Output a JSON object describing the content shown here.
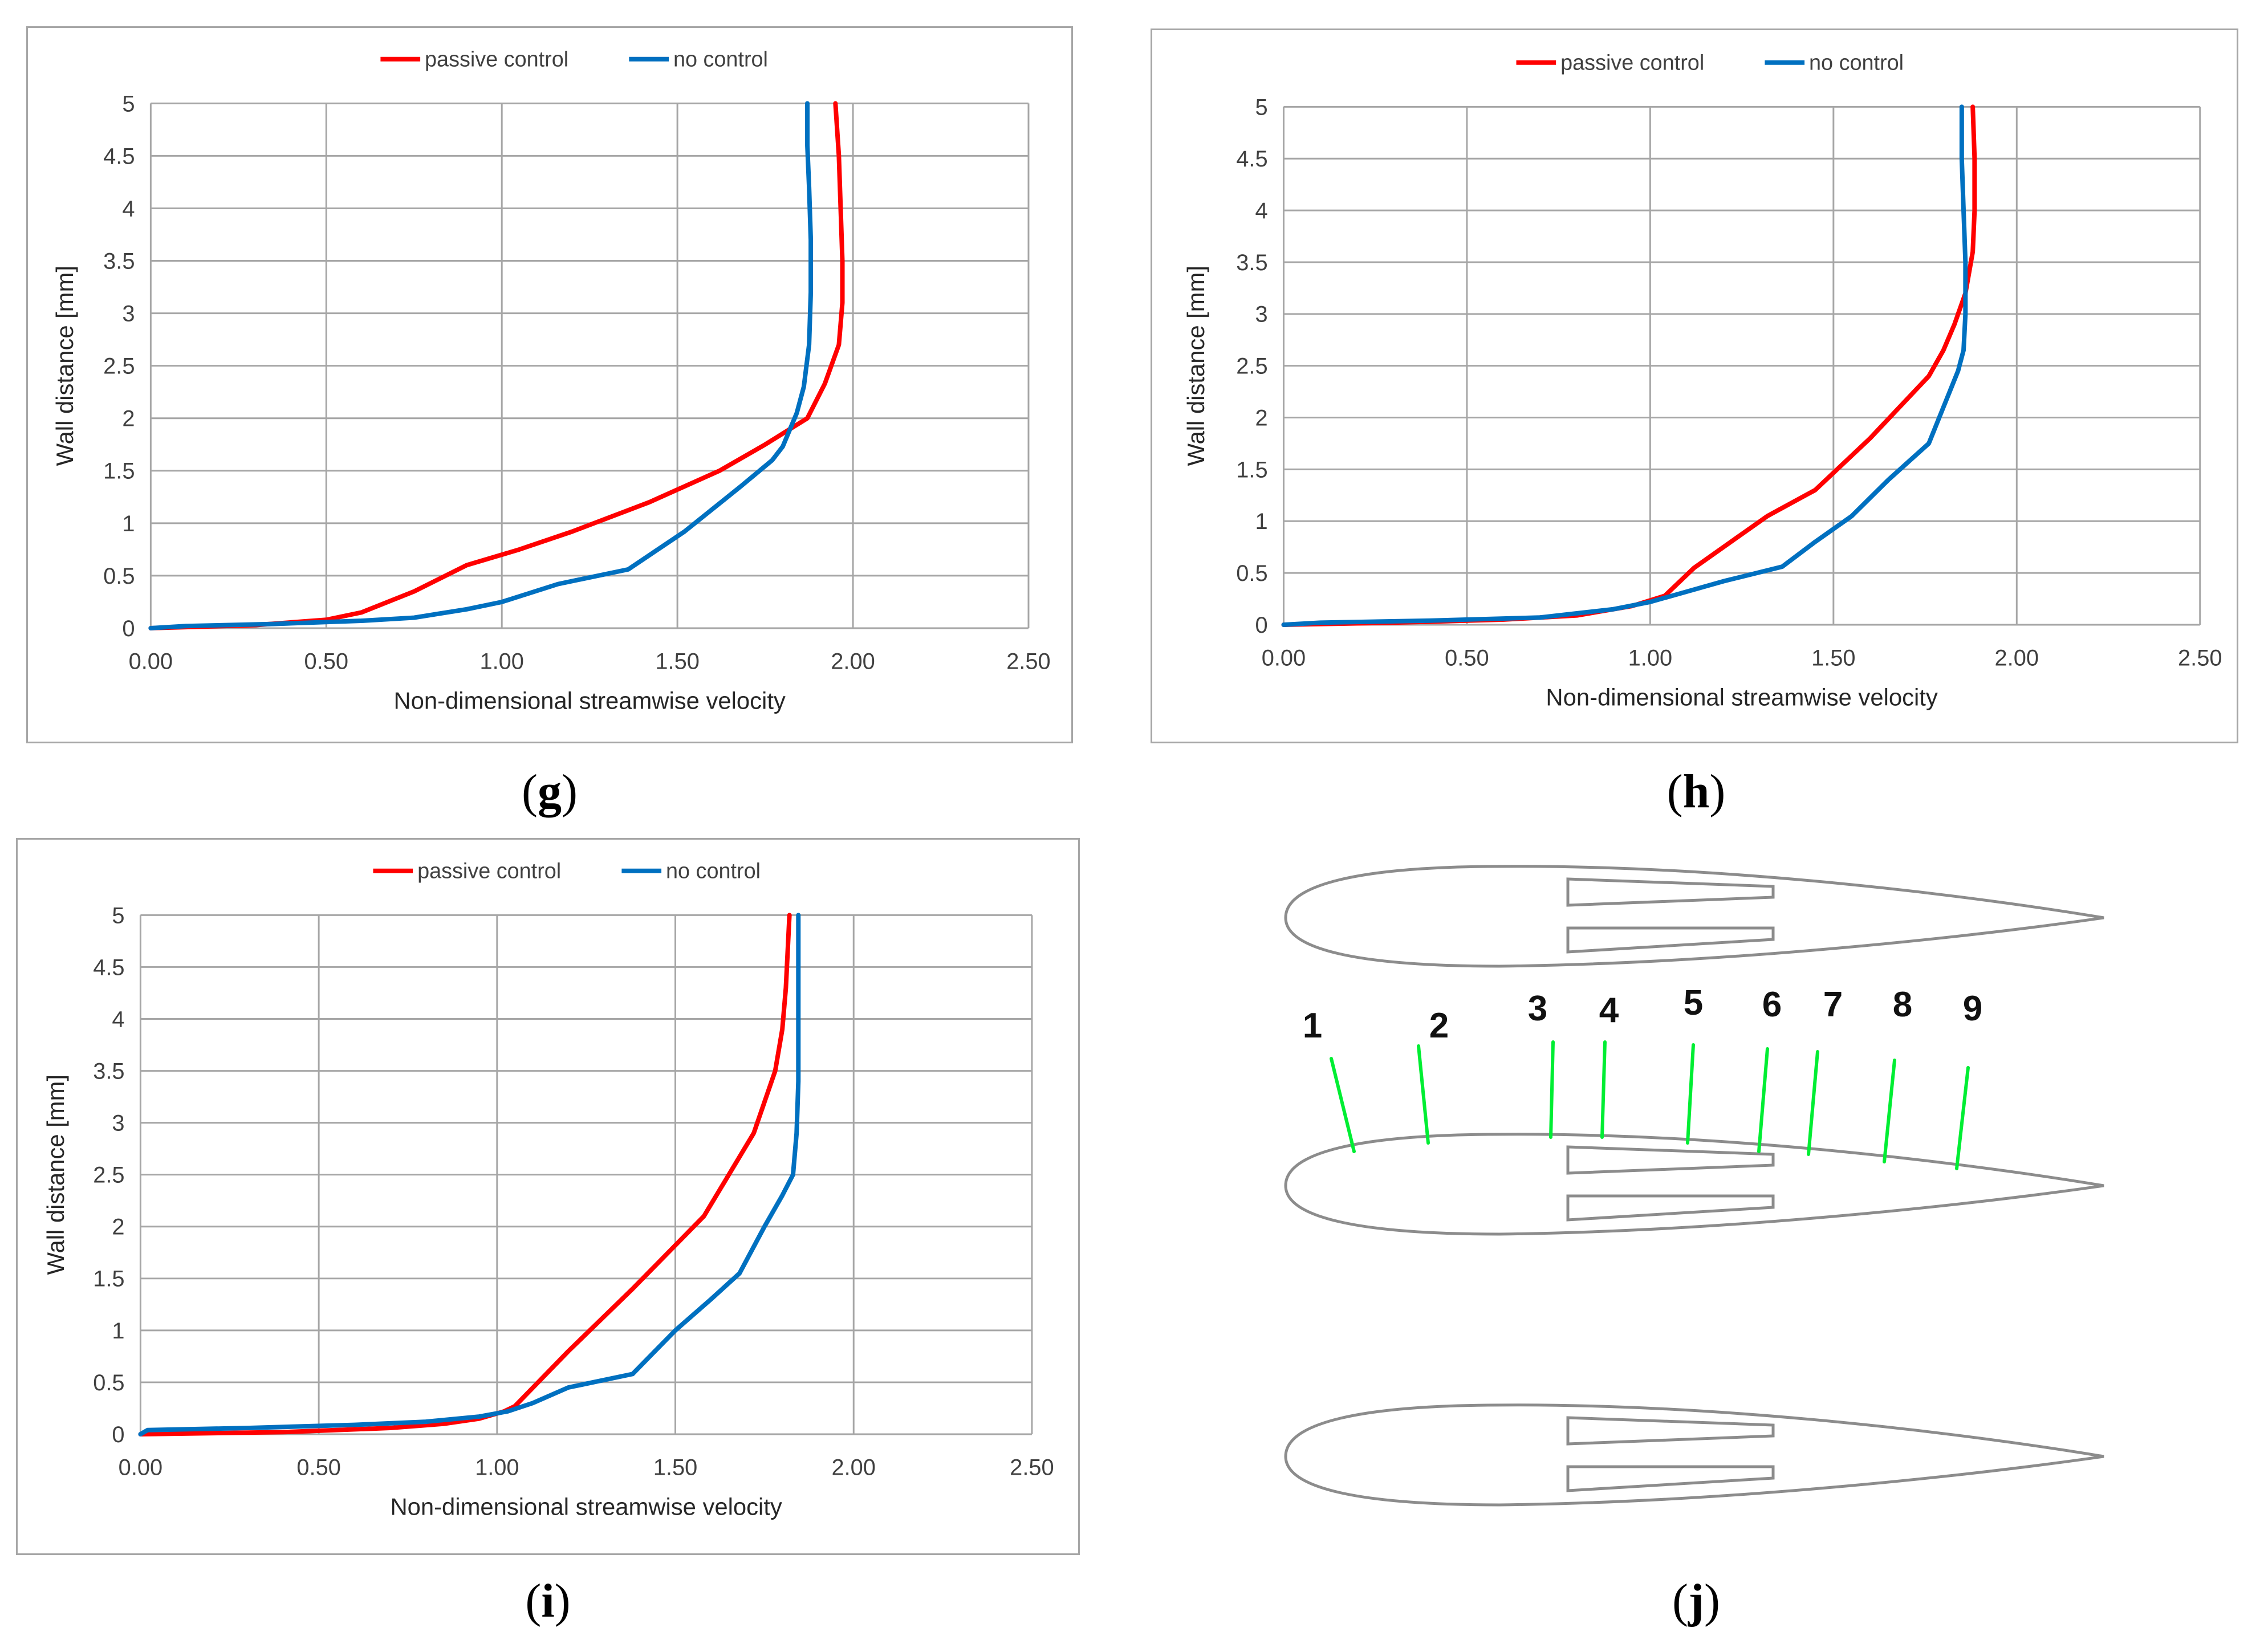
{
  "chart_data": [
    {
      "id": "g",
      "type": "line",
      "caption_letter": "g",
      "xlabel": "Non-dimensional  streamwise velocity",
      "ylabel": "Wall distance [mm]",
      "xlim": [
        0,
        2.5
      ],
      "ylim": [
        0,
        5
      ],
      "x_ticks": [
        "0.00",
        "0.50",
        "1.00",
        "1.50",
        "2.00",
        "2.50"
      ],
      "y_ticks": [
        "0",
        "0.5",
        "1",
        "1.5",
        "2",
        "2.5",
        "3",
        "3.5",
        "4",
        "4.5",
        "5"
      ],
      "grid": true,
      "legend_position": "top-center",
      "series": [
        {
          "name": "passive control",
          "color": "#ff0000",
          "points": [
            [
              0,
              0
            ],
            [
              0.3,
              0.03
            ],
            [
              0.5,
              0.08
            ],
            [
              0.6,
              0.15
            ],
            [
              0.75,
              0.35
            ],
            [
              0.9,
              0.6
            ],
            [
              1.05,
              0.75
            ],
            [
              1.2,
              0.92
            ],
            [
              1.42,
              1.2
            ],
            [
              1.62,
              1.5
            ],
            [
              1.75,
              1.75
            ],
            [
              1.87,
              2.0
            ],
            [
              1.92,
              2.33
            ],
            [
              1.96,
              2.7
            ],
            [
              1.97,
              3.1
            ],
            [
              1.97,
              3.5
            ],
            [
              1.965,
              4.0
            ],
            [
              1.96,
              4.5
            ],
            [
              1.95,
              5.0
            ]
          ]
        },
        {
          "name": "no control",
          "color": "#0070c0",
          "points": [
            [
              0,
              0
            ],
            [
              0.1,
              0.02
            ],
            [
              0.35,
              0.04
            ],
            [
              0.6,
              0.07
            ],
            [
              0.75,
              0.1
            ],
            [
              0.9,
              0.18
            ],
            [
              1.0,
              0.25
            ],
            [
              1.16,
              0.42
            ],
            [
              1.36,
              0.56
            ],
            [
              1.52,
              0.92
            ],
            [
              1.68,
              1.35
            ],
            [
              1.77,
              1.6
            ],
            [
              1.8,
              1.73
            ],
            [
              1.84,
              2.05
            ],
            [
              1.86,
              2.3
            ],
            [
              1.875,
              2.7
            ],
            [
              1.88,
              3.2
            ],
            [
              1.88,
              3.7
            ],
            [
              1.875,
              4.2
            ],
            [
              1.87,
              4.6
            ],
            [
              1.87,
              5.0
            ]
          ]
        }
      ]
    },
    {
      "id": "h",
      "type": "line",
      "caption_letter": "h",
      "xlabel": "Non-dimensional  streamwise velocity",
      "ylabel": "Wall distance [mm]",
      "xlim": [
        0,
        2.5
      ],
      "ylim": [
        0,
        5
      ],
      "x_ticks": [
        "0.00",
        "0.50",
        "1.00",
        "1.50",
        "2.00",
        "2.50"
      ],
      "y_ticks": [
        "0",
        "0.5",
        "1",
        "1.5",
        "2",
        "2.5",
        "3",
        "3.5",
        "4",
        "4.5",
        "5"
      ],
      "grid": true,
      "legend_position": "top-center",
      "series": [
        {
          "name": "passive control",
          "color": "#ff0000",
          "points": [
            [
              0,
              0
            ],
            [
              0.3,
              0.02
            ],
            [
              0.6,
              0.05
            ],
            [
              0.8,
              0.09
            ],
            [
              0.95,
              0.18
            ],
            [
              1.04,
              0.28
            ],
            [
              1.12,
              0.55
            ],
            [
              1.22,
              0.8
            ],
            [
              1.32,
              1.05
            ],
            [
              1.45,
              1.3
            ],
            [
              1.6,
              1.8
            ],
            [
              1.68,
              2.1
            ],
            [
              1.76,
              2.4
            ],
            [
              1.8,
              2.65
            ],
            [
              1.83,
              2.9
            ],
            [
              1.86,
              3.2
            ],
            [
              1.88,
              3.6
            ],
            [
              1.885,
              4.0
            ],
            [
              1.885,
              4.5
            ],
            [
              1.88,
              5.0
            ]
          ]
        },
        {
          "name": "no control",
          "color": "#0070c0",
          "points": [
            [
              0,
              0
            ],
            [
              0.1,
              0.02
            ],
            [
              0.4,
              0.04
            ],
            [
              0.7,
              0.07
            ],
            [
              0.9,
              0.15
            ],
            [
              1.0,
              0.22
            ],
            [
              1.2,
              0.42
            ],
            [
              1.36,
              0.56
            ],
            [
              1.45,
              0.8
            ],
            [
              1.55,
              1.05
            ],
            [
              1.65,
              1.4
            ],
            [
              1.76,
              1.75
            ],
            [
              1.8,
              2.1
            ],
            [
              1.84,
              2.45
            ],
            [
              1.855,
              2.65
            ],
            [
              1.86,
              3.0
            ],
            [
              1.86,
              3.5
            ],
            [
              1.855,
              4.0
            ],
            [
              1.85,
              4.5
            ],
            [
              1.85,
              5.0
            ]
          ]
        }
      ]
    },
    {
      "id": "i",
      "type": "line",
      "caption_letter": "i",
      "xlabel": "Non-dimensional  streamwise velocity",
      "ylabel": "Wall distance [mm]",
      "xlim": [
        0,
        2.5
      ],
      "ylim": [
        0,
        5
      ],
      "x_ticks": [
        "0.00",
        "0.50",
        "1.00",
        "1.50",
        "2.00",
        "2.50"
      ],
      "y_ticks": [
        "0",
        "0.5",
        "1",
        "1.5",
        "2",
        "2.5",
        "3",
        "3.5",
        "4",
        "4.5",
        "5"
      ],
      "grid": true,
      "legend_position": "top-center",
      "series": [
        {
          "name": "passive control",
          "color": "#ff0000",
          "points": [
            [
              0,
              0
            ],
            [
              0.4,
              0.02
            ],
            [
              0.7,
              0.06
            ],
            [
              0.85,
              0.1
            ],
            [
              0.95,
              0.15
            ],
            [
              1.02,
              0.22
            ],
            [
              1.05,
              0.27
            ],
            [
              1.2,
              0.8
            ],
            [
              1.38,
              1.4
            ],
            [
              1.58,
              2.1
            ],
            [
              1.65,
              2.5
            ],
            [
              1.72,
              2.9
            ],
            [
              1.78,
              3.5
            ],
            [
              1.8,
              3.9
            ],
            [
              1.81,
              4.3
            ],
            [
              1.82,
              5.0
            ]
          ]
        },
        {
          "name": "no control",
          "color": "#0070c0",
          "points": [
            [
              0,
              0
            ],
            [
              0.02,
              0.04
            ],
            [
              0.3,
              0.06
            ],
            [
              0.6,
              0.09
            ],
            [
              0.8,
              0.12
            ],
            [
              0.95,
              0.17
            ],
            [
              1.03,
              0.22
            ],
            [
              1.1,
              0.3
            ],
            [
              1.2,
              0.45
            ],
            [
              1.38,
              0.58
            ],
            [
              1.5,
              1.0
            ],
            [
              1.6,
              1.3
            ],
            [
              1.68,
              1.55
            ],
            [
              1.75,
              2.0
            ],
            [
              1.8,
              2.3
            ],
            [
              1.83,
              2.5
            ],
            [
              1.84,
              2.9
            ],
            [
              1.845,
              3.4
            ],
            [
              1.845,
              4.0
            ],
            [
              1.845,
              4.5
            ],
            [
              1.845,
              5.0
            ]
          ]
        }
      ]
    }
  ],
  "diagram_j": {
    "caption_letter": "j",
    "station_labels": [
      "1",
      "2",
      "3",
      "4",
      "5",
      "6",
      "7",
      "8",
      "9"
    ],
    "probe_color": "#00ee33",
    "outline_color": "#8c8c8c"
  }
}
